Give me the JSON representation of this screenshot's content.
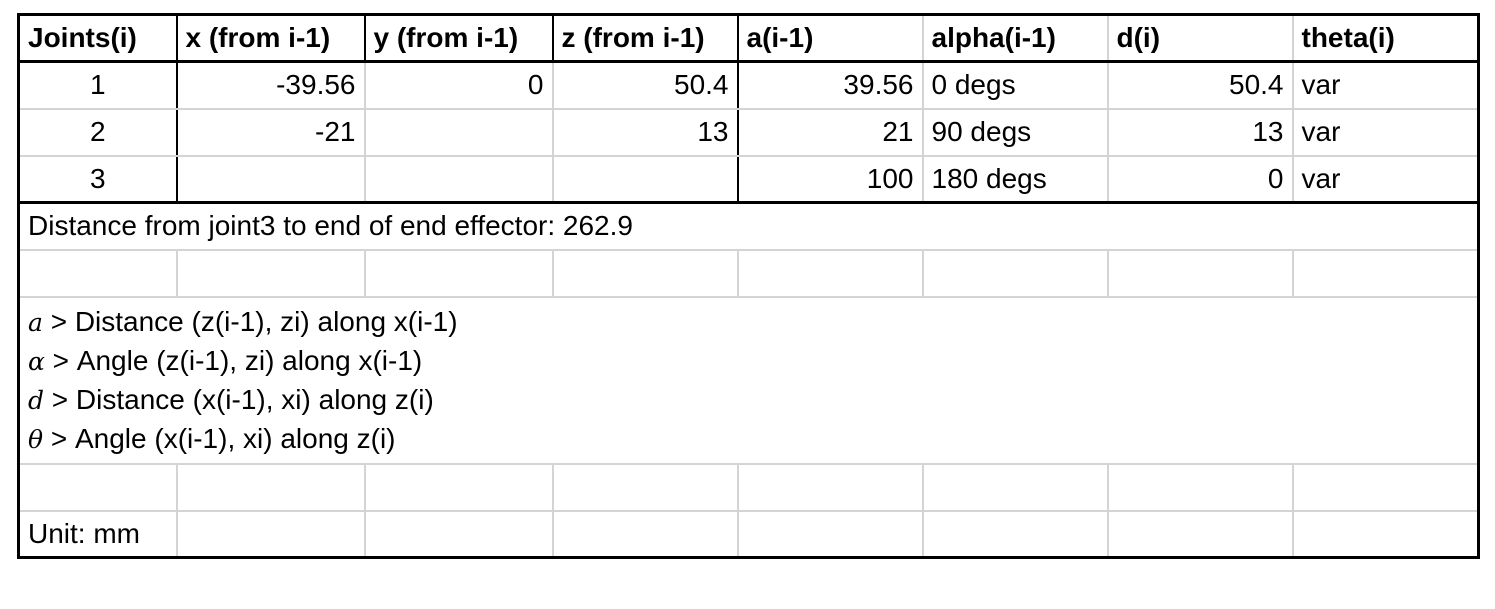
{
  "headers": [
    "Joints(i)",
    "x (from i-1)",
    "y (from i-1)",
    "z (from i-1)",
    "a(i-1)",
    "alpha(i-1)",
    "d(i)",
    "theta(i)"
  ],
  "rows": [
    [
      "1",
      "-39.56",
      "0",
      "50.4",
      "39.56",
      "0 degs",
      "50.4",
      "var"
    ],
    [
      "2",
      "-21",
      "",
      "13",
      "21",
      "90 degs",
      "13",
      "var"
    ],
    [
      "3",
      "",
      "",
      "",
      "100",
      "180 degs",
      "0",
      "var"
    ]
  ],
  "distance_note": "Distance from joint3 to end of end effector: 262.9",
  "notes": [
    {
      "symbol": "a",
      "text": "> Distance (z(i-1), zi) along x(i-1)"
    },
    {
      "symbol": "α",
      "text": "> Angle (z(i-1), zi) along x(i-1)"
    },
    {
      "symbol": "d",
      "text": "> Distance (x(i-1), xi) along z(i)"
    },
    {
      "symbol": "θ",
      "text": "> Angle (x(i-1), xi) along z(i)"
    }
  ],
  "unit_label": "Unit: mm"
}
